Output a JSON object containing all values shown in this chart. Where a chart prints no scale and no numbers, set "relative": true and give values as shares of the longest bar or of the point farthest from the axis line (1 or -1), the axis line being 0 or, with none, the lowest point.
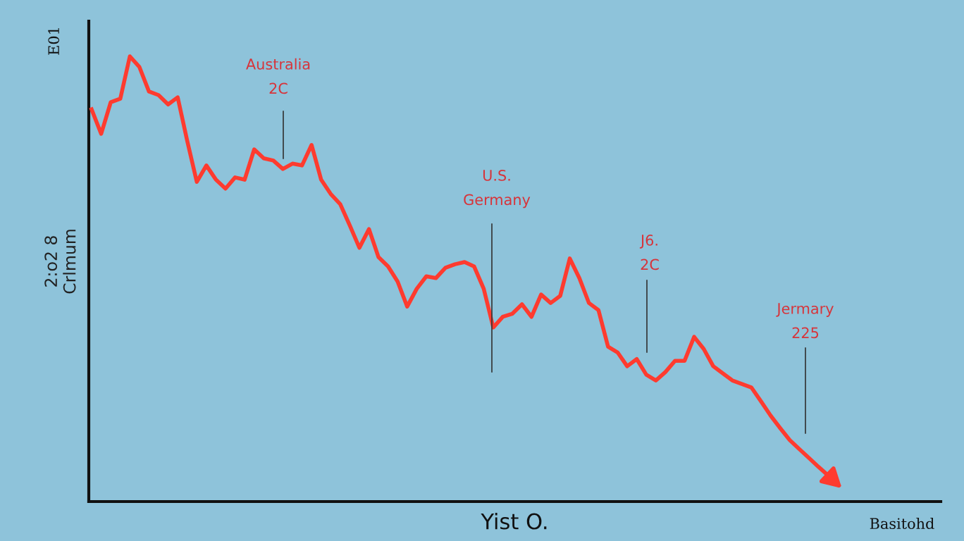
{
  "chart_data": {
    "type": "line",
    "relative": true,
    "color": "#ff3b2f",
    "xlabel": "Yist O.",
    "ylabel": "2:o2 8\nCrlmum",
    "categories": [
      null,
      null,
      null,
      null,
      null,
      null,
      null,
      null,
      null,
      null,
      null,
      null,
      null,
      null,
      null,
      null,
      null,
      null,
      null,
      null,
      null,
      null,
      null,
      null,
      null,
      null,
      null,
      null,
      null,
      null,
      null,
      null,
      null,
      null,
      null,
      null,
      null,
      null,
      null,
      null,
      null,
      null,
      null,
      null,
      null,
      null,
      null,
      null,
      null,
      null,
      null,
      null,
      null,
      null,
      null,
      null,
      null,
      null,
      null,
      null,
      null,
      null,
      null,
      null,
      null,
      null,
      null,
      null,
      null,
      null,
      null,
      null,
      null,
      null,
      null,
      null,
      null,
      null
    ],
    "values": [
      0.881,
      0.826,
      0.897,
      0.905,
      1.0,
      0.976,
      0.921,
      0.913,
      0.892,
      0.908,
      0.81,
      0.718,
      0.755,
      0.723,
      0.703,
      0.728,
      0.723,
      0.791,
      0.771,
      0.766,
      0.747,
      0.759,
      0.755,
      0.801,
      0.723,
      0.691,
      0.668,
      0.62,
      0.57,
      0.612,
      0.549,
      0.528,
      0.494,
      0.438,
      0.478,
      0.506,
      0.502,
      0.525,
      0.533,
      0.538,
      0.528,
      0.478,
      0.391,
      0.415,
      0.422,
      0.443,
      0.415,
      0.465,
      0.446,
      0.462,
      0.546,
      0.502,
      0.446,
      0.43,
      0.348,
      0.335,
      0.304,
      0.32,
      0.285,
      0.272,
      0.291,
      0.316,
      0.316,
      0.37,
      0.343,
      0.304,
      0.288,
      0.272,
      0.264,
      0.256,
      0.225,
      0.193,
      0.165,
      0.138,
      0.118,
      0.098,
      0.078,
      0.059
    ],
    "annotations": [
      "E01",
      "Australia\n2C",
      "U.S.\nGermany",
      "J6.\n2C",
      "Jermary\n225",
      "Basitohd"
    ],
    "grid": false,
    "marker": "none",
    "line_style": "solid"
  }
}
